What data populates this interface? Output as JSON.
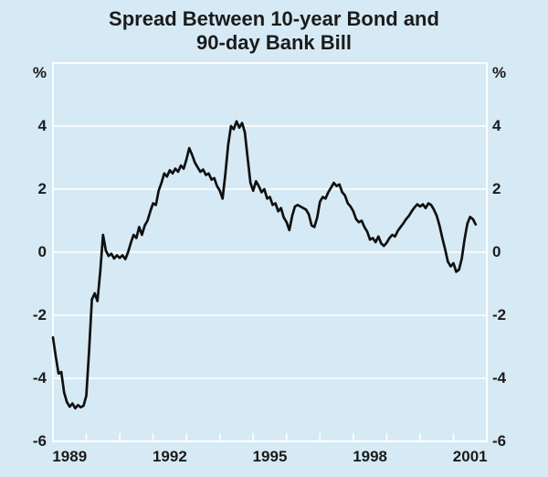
{
  "page": {
    "background": "#D6EAF5"
  },
  "chart_data": {
    "type": "line",
    "title_line1": "Spread Between 10-year Bond and",
    "title_line2": "90-day Bank Bill",
    "unit": "%",
    "y_axis": {
      "left_labels": [
        "%",
        "4",
        "2",
        "0",
        "-2",
        "-4",
        "-6"
      ],
      "right_labels": [
        "%",
        "4",
        "2",
        "0",
        "-2",
        "-4",
        "-6"
      ]
    },
    "x_axis": {
      "labels": [
        "1989",
        "1992",
        "1995",
        "1998",
        "2001"
      ],
      "label_years": [
        1989,
        1992,
        1995,
        1998,
        2001
      ],
      "tick_interval_years": 1
    },
    "layout": {
      "xlim": [
        1989,
        2002
      ],
      "ylim": [
        -6,
        6
      ],
      "y_gridlines": [
        4,
        2,
        0,
        -2,
        -4
      ],
      "grid": true,
      "legend": false,
      "frame": true
    },
    "colors": {
      "background": "#D6EAF5",
      "grid": "#FFFFFF",
      "line": "#101010",
      "text": "#1B1B1B"
    },
    "series": [
      {
        "name": "Spread between 10-year bond and 90-day bank bill",
        "start_year": 1989,
        "points_per_year": 12,
        "values": [
          -2.7,
          -3.3,
          -3.85,
          -3.8,
          -4.45,
          -4.75,
          -4.9,
          -4.8,
          -4.95,
          -4.85,
          -4.92,
          -4.87,
          -4.55,
          -3.1,
          -1.5,
          -1.3,
          -1.55,
          -0.6,
          0.55,
          0.05,
          -0.12,
          -0.05,
          -0.2,
          -0.1,
          -0.18,
          -0.1,
          -0.22,
          0.0,
          0.3,
          0.55,
          0.45,
          0.8,
          0.55,
          0.85,
          1.0,
          1.3,
          1.55,
          1.5,
          1.95,
          2.2,
          2.5,
          2.4,
          2.6,
          2.5,
          2.65,
          2.55,
          2.75,
          2.65,
          2.95,
          3.3,
          3.1,
          2.85,
          2.7,
          2.55,
          2.62,
          2.45,
          2.5,
          2.3,
          2.35,
          2.1,
          1.95,
          1.7,
          2.5,
          3.4,
          4.0,
          3.9,
          4.15,
          3.95,
          4.1,
          3.8,
          3.0,
          2.2,
          1.95,
          2.25,
          2.1,
          1.9,
          2.0,
          1.7,
          1.75,
          1.5,
          1.55,
          1.3,
          1.4,
          1.1,
          0.95,
          0.7,
          1.15,
          1.45,
          1.5,
          1.45,
          1.4,
          1.35,
          1.2,
          0.85,
          0.8,
          1.1,
          1.6,
          1.75,
          1.7,
          1.9,
          2.05,
          2.2,
          2.1,
          2.15,
          1.9,
          1.8,
          1.55,
          1.45,
          1.3,
          1.05,
          0.95,
          1.0,
          0.8,
          0.65,
          0.4,
          0.45,
          0.32,
          0.5,
          0.28,
          0.2,
          0.3,
          0.45,
          0.55,
          0.5,
          0.68,
          0.8,
          0.92,
          1.05,
          1.15,
          1.3,
          1.42,
          1.52,
          1.45,
          1.52,
          1.4,
          1.55,
          1.5,
          1.35,
          1.15,
          0.85,
          0.45,
          0.1,
          -0.3,
          -0.45,
          -0.35,
          -0.62,
          -0.55,
          -0.2,
          0.4,
          0.9,
          1.12,
          1.05,
          0.88
        ]
      }
    ]
  }
}
